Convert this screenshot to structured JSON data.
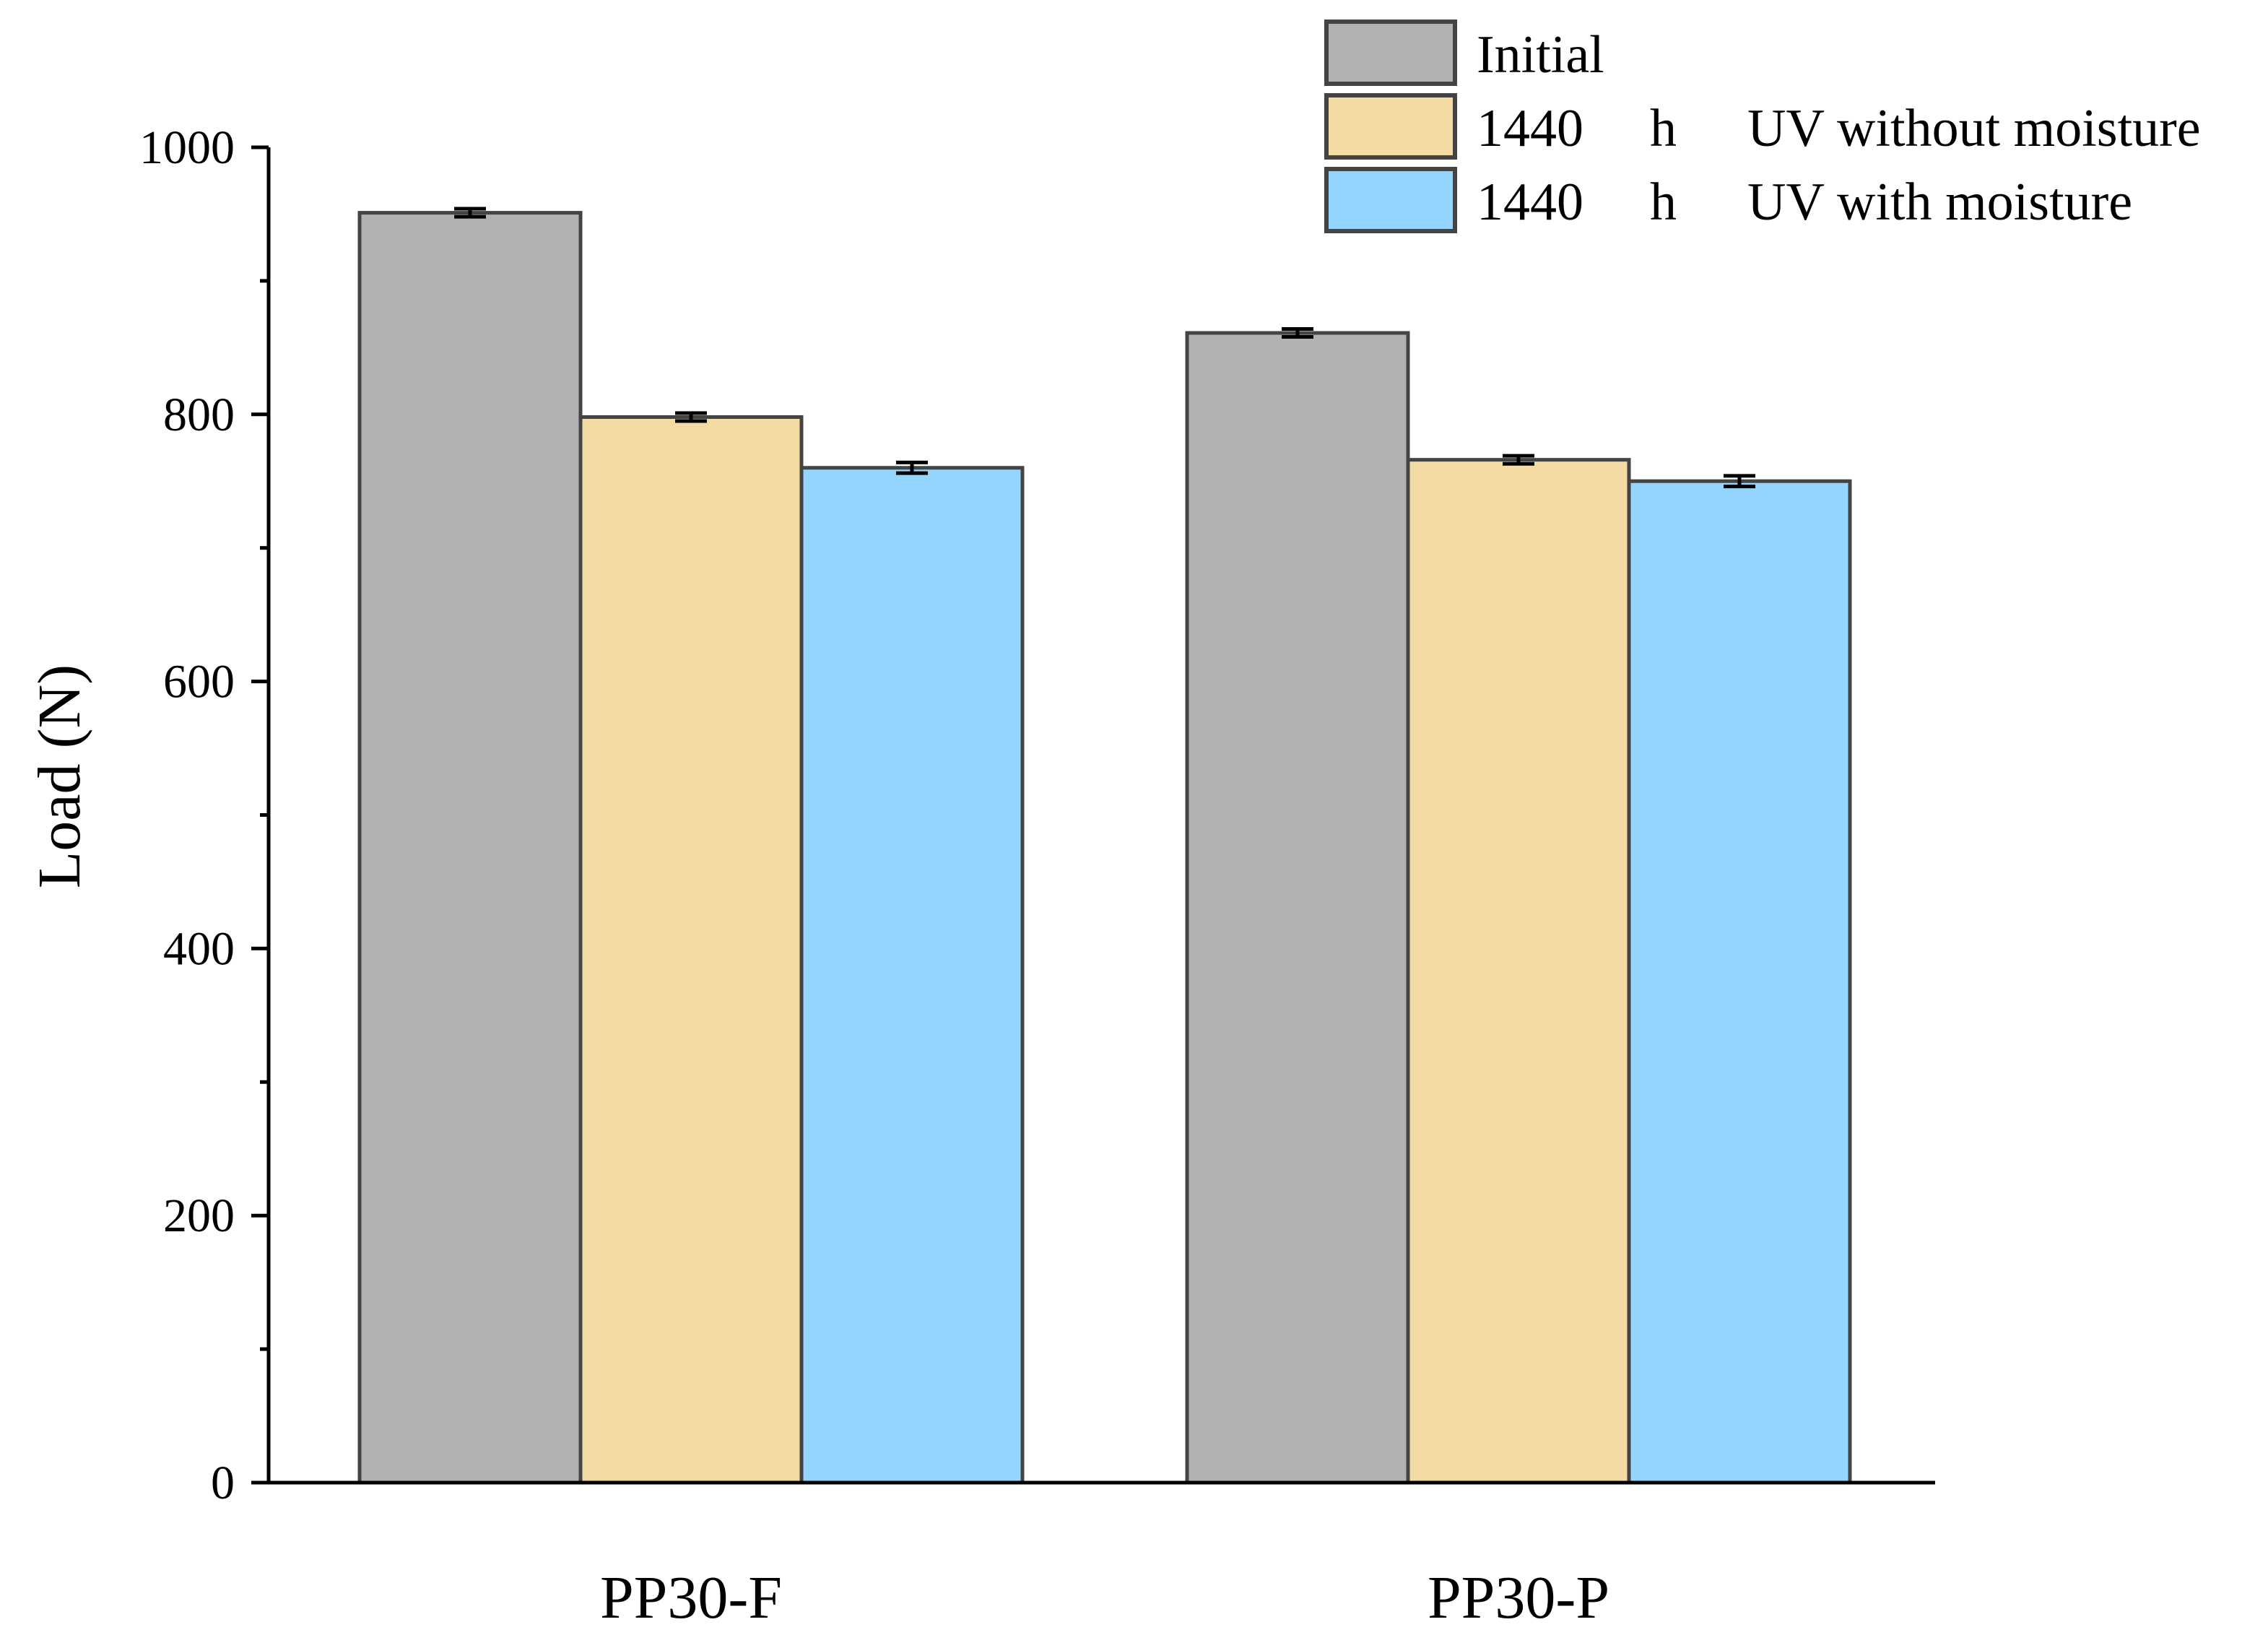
{
  "chart_data": {
    "type": "bar",
    "title": "",
    "xlabel": "",
    "ylabel": "Load (N)",
    "ylim": [
      0,
      1000
    ],
    "yticks": [
      0,
      200,
      400,
      600,
      800,
      1000
    ],
    "ytick_labels": [
      "0",
      "200",
      "400",
      "600",
      "800",
      "1000"
    ],
    "minor_tick_step": 100,
    "categories": [
      "PP30-F",
      "PP30-P"
    ],
    "series": [
      {
        "name": "Initial",
        "legend_parts": [
          "Initial"
        ],
        "color": "#b2b2b2",
        "values": [
          951,
          861
        ],
        "errors": [
          3,
          3
        ]
      },
      {
        "name": "1440 h UV without moisture",
        "legend_parts": [
          "1440",
          "h",
          "UV without moisture"
        ],
        "color": "#f3dba3",
        "values": [
          798,
          766
        ],
        "errors": [
          3,
          3
        ]
      },
      {
        "name": "1440 h UV with moisture",
        "legend_parts": [
          "1440",
          "h",
          "UV with moisture"
        ],
        "color": "#94d5fd",
        "values": [
          760,
          750
        ],
        "errors": [
          4,
          4
        ]
      }
    ],
    "legend_position": "top-right",
    "grid": false
  }
}
